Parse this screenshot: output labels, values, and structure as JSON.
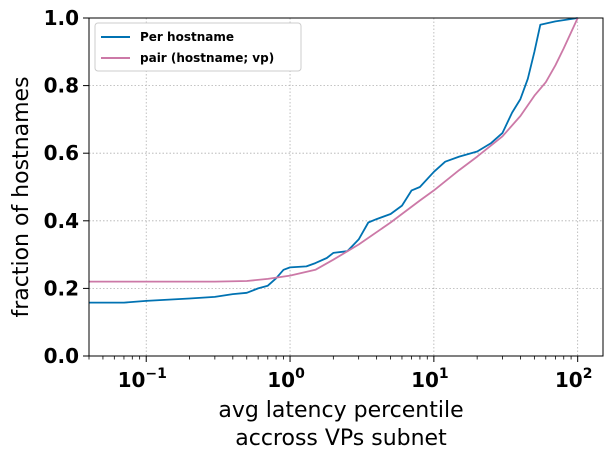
{
  "chart_data": {
    "type": "line",
    "xlabel": "avg latency percentile",
    "xlabel_line2": "accross VPs subnet",
    "ylabel": "fraction of hostnames",
    "x_scale": "log",
    "xlim": [
      0.04,
      150
    ],
    "ylim": [
      0.0,
      1.0
    ],
    "grid": true,
    "legend_position": "top-left",
    "x_ticks": [
      {
        "base": "10",
        "exp": "−1",
        "value": 0.1
      },
      {
        "base": "10",
        "exp": "0",
        "value": 1
      },
      {
        "base": "10",
        "exp": "1",
        "value": 10
      },
      {
        "base": "10",
        "exp": "2",
        "value": 100
      }
    ],
    "y_ticks": [
      "0.0",
      "0.2",
      "0.4",
      "0.6",
      "0.8",
      "1.0"
    ],
    "y_tick_values": [
      0.0,
      0.2,
      0.4,
      0.6,
      0.8,
      1.0
    ],
    "series": [
      {
        "name": "Per hostname",
        "color": "#0072b2",
        "points": [
          [
            0.04,
            0.158
          ],
          [
            0.07,
            0.158
          ],
          [
            0.1,
            0.163
          ],
          [
            0.2,
            0.17
          ],
          [
            0.3,
            0.175
          ],
          [
            0.4,
            0.183
          ],
          [
            0.5,
            0.187
          ],
          [
            0.6,
            0.2
          ],
          [
            0.7,
            0.208
          ],
          [
            0.8,
            0.23
          ],
          [
            0.9,
            0.255
          ],
          [
            1.0,
            0.262
          ],
          [
            1.3,
            0.265
          ],
          [
            1.5,
            0.275
          ],
          [
            1.8,
            0.29
          ],
          [
            2.0,
            0.305
          ],
          [
            2.5,
            0.31
          ],
          [
            3.0,
            0.345
          ],
          [
            3.5,
            0.395
          ],
          [
            4.0,
            0.405
          ],
          [
            5.0,
            0.42
          ],
          [
            6.0,
            0.445
          ],
          [
            7.0,
            0.49
          ],
          [
            8.0,
            0.5
          ],
          [
            10.0,
            0.545
          ],
          [
            12.0,
            0.575
          ],
          [
            15.0,
            0.59
          ],
          [
            20.0,
            0.605
          ],
          [
            25.0,
            0.63
          ],
          [
            30.0,
            0.66
          ],
          [
            35.0,
            0.72
          ],
          [
            40.0,
            0.76
          ],
          [
            45.0,
            0.82
          ],
          [
            50.0,
            0.9
          ],
          [
            55.0,
            0.98
          ],
          [
            70.0,
            0.99
          ],
          [
            100.0,
            1.0
          ]
        ]
      },
      {
        "name": "pair (hostname; vp)",
        "color": "#cc79a7",
        "points": [
          [
            0.04,
            0.22
          ],
          [
            0.3,
            0.22
          ],
          [
            0.5,
            0.222
          ],
          [
            0.7,
            0.228
          ],
          [
            1.0,
            0.238
          ],
          [
            1.5,
            0.255
          ],
          [
            2.0,
            0.285
          ],
          [
            3.0,
            0.33
          ],
          [
            5.0,
            0.395
          ],
          [
            8.0,
            0.46
          ],
          [
            10.0,
            0.49
          ],
          [
            15.0,
            0.55
          ],
          [
            20.0,
            0.59
          ],
          [
            30.0,
            0.65
          ],
          [
            40.0,
            0.71
          ],
          [
            50.0,
            0.77
          ],
          [
            60.0,
            0.81
          ],
          [
            70.0,
            0.86
          ],
          [
            80.0,
            0.91
          ],
          [
            100.0,
            1.0
          ]
        ]
      }
    ]
  }
}
